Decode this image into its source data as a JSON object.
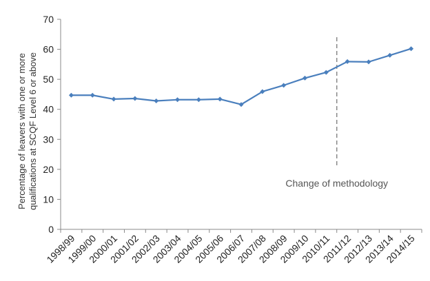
{
  "chart_data": {
    "type": "line",
    "title": "",
    "ylabel_lines": [
      "Percentage of leavers with one or more",
      "qualifications at SCQF Level 6 or above"
    ],
    "xlabel": "",
    "ylim": [
      0,
      70
    ],
    "yticks": [
      0,
      10,
      20,
      30,
      40,
      50,
      60,
      70
    ],
    "grid": false,
    "legend": "none",
    "categories": [
      "1998/99",
      "1999/00",
      "2000/01",
      "2001/02",
      "2002/03",
      "2003/04",
      "2004/05",
      "2005/06",
      "2006/07",
      "2007/08",
      "2008/09",
      "2009/10",
      "2010/11",
      "2011/12",
      "2012/13",
      "2013/14",
      "2014/15"
    ],
    "series": [
      {
        "values": [
          44.7,
          44.7,
          43.4,
          43.6,
          42.8,
          43.2,
          43.2,
          43.4,
          41.6,
          45.9,
          48.0,
          50.4,
          52.3,
          55.9,
          55.8,
          58.0,
          60.2
        ],
        "color": "#4a7fbd"
      }
    ],
    "annotation": {
      "text": "Change of methodology",
      "after_category": "2010/11"
    }
  }
}
